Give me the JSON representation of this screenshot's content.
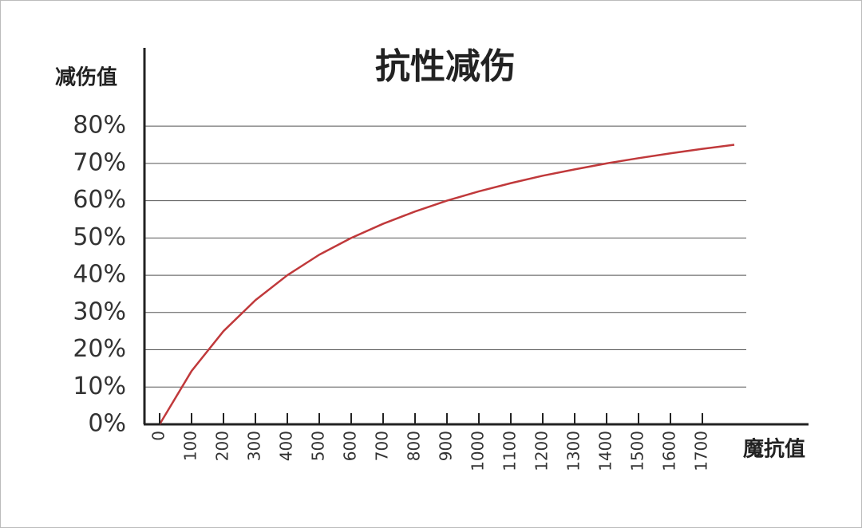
{
  "chart_data": {
    "type": "line",
    "title": "抗性减伤",
    "y_label": "减伤值",
    "x_label": "魔抗值",
    "x": [
      0,
      100,
      200,
      300,
      400,
      500,
      600,
      700,
      800,
      900,
      1000,
      1100,
      1200,
      1300,
      1400,
      1500,
      1600,
      1700,
      1800
    ],
    "series": [
      {
        "name": "减伤值",
        "color": "#c0393b",
        "values": [
          0,
          14.3,
          25,
          33.3,
          40,
          45.5,
          50,
          53.8,
          57.1,
          60,
          62.5,
          64.7,
          66.7,
          68.4,
          70,
          71.4,
          72.7,
          73.9,
          75
        ]
      }
    ],
    "xlim": [
      -50,
      2030
    ],
    "xticks": [
      0,
      100,
      200,
      300,
      400,
      500,
      600,
      700,
      800,
      900,
      1000,
      1100,
      1200,
      1300,
      1400,
      1500,
      1600,
      1700
    ],
    "ylim": [
      0,
      101
    ],
    "yticks": [
      {
        "value": 0,
        "label": "0%"
      },
      {
        "value": 10,
        "label": "10%"
      },
      {
        "value": 20,
        "label": "20%"
      },
      {
        "value": 30,
        "label": "30%"
      },
      {
        "value": 40,
        "label": "40%"
      },
      {
        "value": 50,
        "label": "50%"
      },
      {
        "value": 60,
        "label": "60%"
      },
      {
        "value": 70,
        "label": "70%"
      },
      {
        "value": 80,
        "label": "80%"
      }
    ],
    "grid": true
  }
}
